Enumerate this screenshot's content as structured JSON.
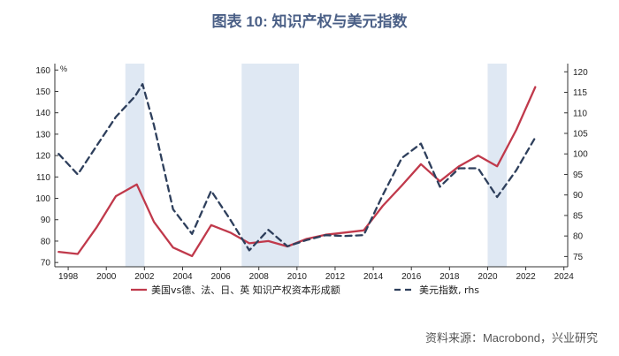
{
  "title": "图表 10: 知识产权与美元指数",
  "source": "资料来源：Macrobond，兴业研究",
  "chart_data": {
    "type": "line",
    "left_unit": "%",
    "x_ticks": [
      1998,
      2000,
      2002,
      2004,
      2006,
      2008,
      2010,
      2012,
      2014,
      2016,
      2018,
      2020,
      2022,
      2024
    ],
    "xlim": [
      1997.3,
      2024.2
    ],
    "y_left": {
      "lim": [
        68,
        163
      ],
      "ticks": [
        70,
        80,
        90,
        100,
        110,
        120,
        130,
        140,
        150,
        160
      ]
    },
    "y_right": {
      "lim": [
        72.5,
        122
      ],
      "ticks": [
        75,
        80,
        85,
        90,
        95,
        100,
        105,
        110,
        115,
        120
      ]
    },
    "shaded_periods": [
      [
        2001.0,
        2002.0
      ],
      [
        2007.1,
        2010.1
      ],
      [
        2020.0,
        2021.0
      ]
    ],
    "series": [
      {
        "name": "美国vs德、法、日、英 知识产权资本形成额",
        "axis": "left",
        "color": "#c0394b",
        "style": "solid",
        "x": [
          1997.5,
          1998.5,
          1999.5,
          2000.5,
          2001.6,
          2002.5,
          2003.5,
          2004.5,
          2005.5,
          2006.5,
          2007.5,
          2008.5,
          2009.5,
          2010.5,
          2011.5,
          2012.5,
          2013.5,
          2014.5,
          2015.5,
          2016.5,
          2017.5,
          2018.5,
          2019.5,
          2020.5,
          2021.5,
          2022.5
        ],
        "y": [
          75,
          74,
          86.5,
          101,
          106.5,
          89,
          77,
          73,
          87.5,
          84,
          79,
          80,
          77.5,
          81,
          83,
          84,
          85,
          96.5,
          106,
          116,
          108,
          115,
          120,
          115,
          132,
          152
        ]
      },
      {
        "name": "美元指数, rhs",
        "axis": "right",
        "color": "#2e3f5c",
        "style": "dashed",
        "x": [
          1997.5,
          1998.5,
          1999.5,
          2000.5,
          2001.5,
          2001.9,
          2002.5,
          2003.5,
          2004.5,
          2005.5,
          2006.5,
          2007.5,
          2008.5,
          2009.5,
          2010.5,
          2011.5,
          2012.5,
          2013.5,
          2014.5,
          2015.5,
          2016.5,
          2017.5,
          2018.5,
          2019.5,
          2020.5,
          2021.5,
          2022.5
        ],
        "y": [
          100,
          95,
          102,
          109,
          114,
          117,
          107,
          86.5,
          80.5,
          91,
          84,
          76.5,
          81.5,
          77.5,
          79,
          80.2,
          80,
          80.2,
          90,
          99,
          102.5,
          92,
          96.5,
          96.5,
          89.5,
          96,
          104
        ]
      }
    ]
  }
}
